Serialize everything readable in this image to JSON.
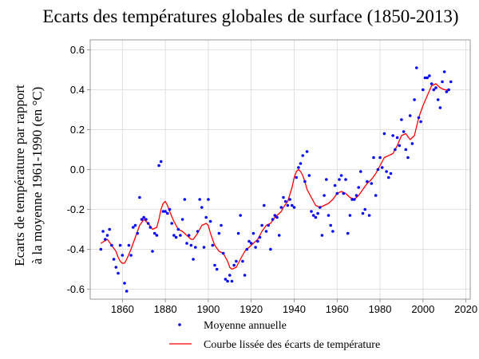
{
  "chart_data": {
    "type": "scatter",
    "title": "Ecarts des températures globales de surface (1850-2013)",
    "ylabel_lines": [
      "Ecarts de température par rapport",
      "à la moyenne 1961-1990 (en °C)"
    ],
    "xlabel": "",
    "xlim": [
      1845,
      2022
    ],
    "ylim": [
      -0.65,
      0.65
    ],
    "xticks": [
      1860,
      1880,
      1900,
      1920,
      1940,
      1960,
      1980,
      2000,
      2020
    ],
    "yticks": [
      -0.6,
      -0.4,
      -0.2,
      0.0,
      0.2,
      0.4,
      0.6
    ],
    "ytick_labels": [
      "-0.6",
      "-0.4",
      "-0.2",
      "0.0",
      "0.2",
      "0.4",
      "0.6"
    ],
    "grid": true,
    "legend_position": "bottom",
    "colors": {
      "points": "#0000ff",
      "curve": "#ff0000",
      "grid": "#d9d9d9"
    },
    "series": [
      {
        "name": "Moyenne annuelle",
        "kind": "points",
        "x": [
          1850,
          1851,
          1852,
          1853,
          1854,
          1855,
          1856,
          1857,
          1858,
          1859,
          1860,
          1861,
          1862,
          1863,
          1864,
          1865,
          1866,
          1867,
          1868,
          1869,
          1870,
          1871,
          1872,
          1873,
          1874,
          1875,
          1876,
          1877,
          1878,
          1879,
          1880,
          1881,
          1882,
          1883,
          1884,
          1885,
          1886,
          1887,
          1888,
          1889,
          1890,
          1891,
          1892,
          1893,
          1894,
          1895,
          1896,
          1897,
          1898,
          1899,
          1900,
          1901,
          1902,
          1903,
          1904,
          1905,
          1906,
          1907,
          1908,
          1909,
          1910,
          1911,
          1912,
          1913,
          1914,
          1915,
          1916,
          1917,
          1918,
          1919,
          1920,
          1921,
          1922,
          1923,
          1924,
          1925,
          1926,
          1927,
          1928,
          1929,
          1930,
          1931,
          1932,
          1933,
          1934,
          1935,
          1936,
          1937,
          1938,
          1939,
          1940,
          1941,
          1942,
          1943,
          1944,
          1945,
          1946,
          1947,
          1948,
          1949,
          1950,
          1951,
          1952,
          1953,
          1954,
          1955,
          1956,
          1957,
          1958,
          1959,
          1960,
          1961,
          1962,
          1963,
          1964,
          1965,
          1966,
          1967,
          1968,
          1969,
          1970,
          1971,
          1972,
          1973,
          1974,
          1975,
          1976,
          1977,
          1978,
          1979,
          1980,
          1981,
          1982,
          1983,
          1984,
          1985,
          1986,
          1987,
          1988,
          1989,
          1990,
          1991,
          1992,
          1993,
          1994,
          1995,
          1996,
          1997,
          1998,
          1999,
          2000,
          2001,
          2002,
          2003,
          2004,
          2005,
          2006,
          2007,
          2008,
          2009,
          2010,
          2011,
          2012,
          2013
        ],
        "y": [
          -0.4,
          -0.31,
          -0.35,
          -0.33,
          -0.3,
          -0.38,
          -0.45,
          -0.49,
          -0.52,
          -0.38,
          -0.43,
          -0.57,
          -0.61,
          -0.38,
          -0.43,
          -0.29,
          -0.28,
          -0.32,
          -0.14,
          -0.25,
          -0.24,
          -0.25,
          -0.27,
          -0.29,
          -0.41,
          -0.32,
          -0.33,
          0.02,
          0.04,
          -0.21,
          -0.21,
          -0.22,
          -0.2,
          -0.27,
          -0.33,
          -0.34,
          -0.3,
          -0.33,
          -0.25,
          -0.15,
          -0.37,
          -0.33,
          -0.38,
          -0.45,
          -0.39,
          -0.31,
          -0.15,
          -0.19,
          -0.39,
          -0.24,
          -0.15,
          -0.26,
          -0.38,
          -0.48,
          -0.5,
          -0.32,
          -0.28,
          -0.42,
          -0.55,
          -0.56,
          -0.53,
          -0.56,
          -0.48,
          -0.46,
          -0.32,
          -0.23,
          -0.46,
          -0.53,
          -0.4,
          -0.36,
          -0.37,
          -0.32,
          -0.39,
          -0.36,
          -0.34,
          -0.28,
          -0.18,
          -0.31,
          -0.28,
          -0.4,
          -0.25,
          -0.23,
          -0.24,
          -0.33,
          -0.19,
          -0.14,
          -0.16,
          -0.18,
          -0.15,
          -0.18,
          -0.19,
          -0.04,
          0.01,
          0.03,
          0.07,
          -0.06,
          0.09,
          -0.03,
          -0.21,
          -0.23,
          -0.24,
          -0.22,
          -0.19,
          -0.33,
          -0.13,
          -0.05,
          -0.23,
          -0.28,
          -0.31,
          -0.08,
          -0.12,
          -0.05,
          -0.03,
          -0.12,
          -0.05,
          -0.32,
          -0.23,
          -0.15,
          -0.15,
          -0.13,
          -0.09,
          -0.01,
          -0.22,
          -0.2,
          -0.06,
          -0.23,
          -0.07,
          0.06,
          -0.13,
          0.0,
          0.06,
          0.01,
          0.18,
          -0.01,
          -0.04,
          -0.02,
          0.17,
          0.1,
          0.16,
          0.12,
          0.25,
          0.19,
          0.1,
          0.06,
          0.27,
          0.13,
          0.35,
          0.51,
          0.26,
          0.24,
          0.4,
          0.46,
          0.46,
          0.47,
          0.43,
          0.4,
          0.41,
          0.35,
          0.31,
          0.44,
          0.49,
          0.39,
          0.4,
          0.44
        ]
      },
      {
        "name": "Courbe lissée des écarts de température",
        "kind": "line",
        "x": [
          1850,
          1853,
          1855,
          1857,
          1858,
          1859,
          1860,
          1861,
          1862,
          1864,
          1866,
          1868,
          1870,
          1872,
          1874,
          1876,
          1877,
          1878,
          1879,
          1880,
          1881,
          1882,
          1884,
          1886,
          1888,
          1890,
          1892,
          1893,
          1895,
          1897,
          1899,
          1900,
          1901,
          1903,
          1905,
          1907,
          1909,
          1910,
          1911,
          1913,
          1915,
          1917,
          1920,
          1923,
          1925,
          1927,
          1929,
          1931,
          1933,
          1934,
          1935,
          1937,
          1939,
          1940,
          1941,
          1942,
          1943,
          1944,
          1945,
          1946,
          1948,
          1950,
          1952,
          1954,
          1956,
          1958,
          1960,
          1962,
          1964,
          1966,
          1968,
          1970,
          1972,
          1974,
          1976,
          1978,
          1980,
          1982,
          1984,
          1986,
          1988,
          1990,
          1992,
          1994,
          1996,
          1998,
          2000,
          2002,
          2004,
          2006,
          2008,
          2010,
          2012
        ],
        "y": [
          -0.37,
          -0.35,
          -0.38,
          -0.41,
          -0.44,
          -0.46,
          -0.47,
          -0.47,
          -0.45,
          -0.4,
          -0.34,
          -0.28,
          -0.25,
          -0.27,
          -0.3,
          -0.29,
          -0.25,
          -0.2,
          -0.17,
          -0.16,
          -0.18,
          -0.21,
          -0.26,
          -0.3,
          -0.31,
          -0.33,
          -0.35,
          -0.35,
          -0.32,
          -0.28,
          -0.27,
          -0.28,
          -0.32,
          -0.38,
          -0.41,
          -0.42,
          -0.46,
          -0.49,
          -0.5,
          -0.49,
          -0.45,
          -0.41,
          -0.38,
          -0.35,
          -0.31,
          -0.28,
          -0.27,
          -0.24,
          -0.22,
          -0.21,
          -0.19,
          -0.16,
          -0.09,
          -0.04,
          -0.01,
          0.0,
          -0.01,
          -0.03,
          -0.06,
          -0.1,
          -0.14,
          -0.18,
          -0.19,
          -0.18,
          -0.17,
          -0.15,
          -0.12,
          -0.11,
          -0.12,
          -0.14,
          -0.15,
          -0.13,
          -0.1,
          -0.07,
          -0.05,
          -0.02,
          0.02,
          0.06,
          0.07,
          0.08,
          0.12,
          0.17,
          0.18,
          0.15,
          0.17,
          0.26,
          0.32,
          0.37,
          0.42,
          0.43,
          0.41,
          0.4,
          0.4
        ]
      }
    ]
  }
}
